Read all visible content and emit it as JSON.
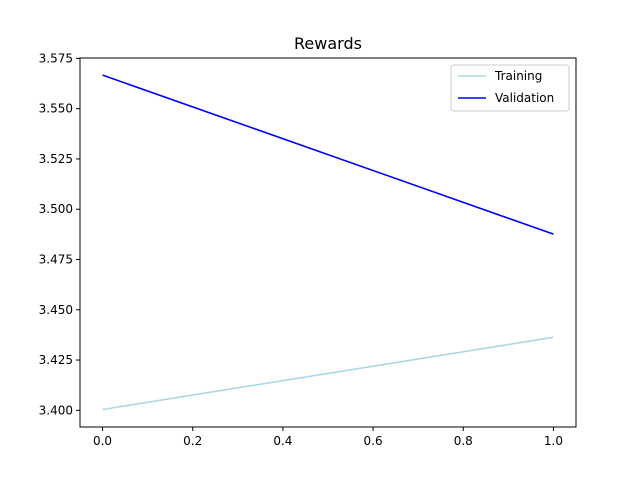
{
  "chart_data": {
    "type": "line",
    "title": "Rewards",
    "xlabel": "",
    "ylabel": "",
    "xlim": [
      -0.05,
      1.05
    ],
    "ylim": [
      3.3917,
      3.5752
    ],
    "xticks": [
      0.0,
      0.2,
      0.4,
      0.6,
      0.8,
      1.0
    ],
    "xtick_labels": [
      "0.0",
      "0.2",
      "0.4",
      "0.6",
      "0.8",
      "1.0"
    ],
    "yticks": [
      3.4,
      3.425,
      3.45,
      3.475,
      3.5,
      3.525,
      3.55,
      3.575
    ],
    "ytick_labels": [
      "3.400",
      "3.425",
      "3.450",
      "3.475",
      "3.500",
      "3.525",
      "3.550",
      "3.575"
    ],
    "grid": false,
    "legend_position": "top-right",
    "series": [
      {
        "name": "Training",
        "color": "#add8e6",
        "x": [
          0,
          1
        ],
        "y": [
          3.4004,
          3.4363
        ]
      },
      {
        "name": "Validation",
        "color": "#0000ff",
        "x": [
          0,
          1
        ],
        "y": [
          3.5667,
          3.4876
        ]
      }
    ]
  }
}
